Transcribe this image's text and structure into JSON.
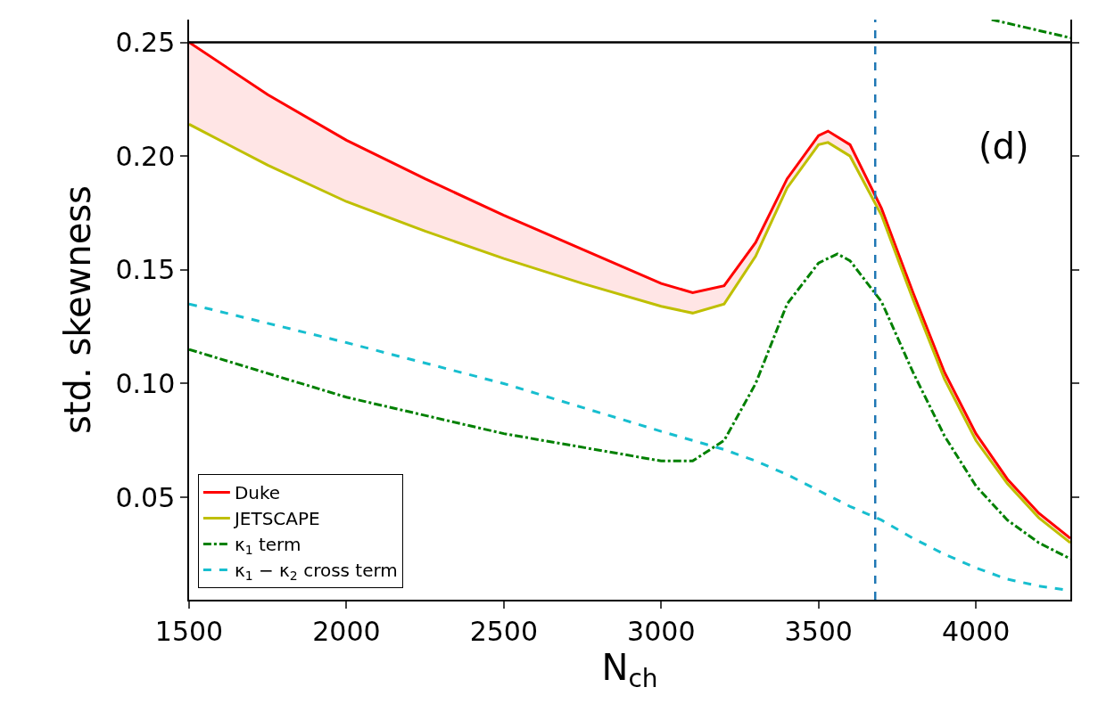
{
  "chart_data": {
    "type": "line",
    "xlabel": "N$_{ch}$",
    "ylabel": "std. skewness",
    "annotations": [
      "(d)"
    ],
    "xlim": [
      1500,
      4300
    ],
    "xticks": [
      1500,
      2000,
      2500,
      3000,
      3500,
      4000
    ],
    "ylim": [
      0.005,
      0.26
    ],
    "yticks": [
      0.05,
      {
        "value": 0.1,
        "label": "0.10"
      },
      0.15,
      {
        "value": 0.2,
        "label": "0.20"
      },
      0.25
    ],
    "grid": false,
    "legend": "bottom left",
    "ref_lines": [
      {
        "axis": "y",
        "value": 0.25,
        "color": "#000000",
        "line_style": "solid"
      },
      {
        "axis": "x",
        "value": 3680,
        "color": "#1f77b4",
        "line_style": "dashed"
      }
    ],
    "series": [
      {
        "name": "Duke",
        "color": "#ff0000",
        "line_style": "solid",
        "x": [
          1500,
          1750,
          2000,
          2250,
          2500,
          2750,
          3000,
          3100,
          3200,
          3300,
          3400,
          3500,
          3530,
          3600,
          3700,
          3800,
          3900,
          4000,
          4100,
          4200,
          4300
        ],
        "values": [
          0.25,
          0.227,
          0.207,
          0.19,
          0.174,
          0.159,
          0.144,
          0.14,
          0.143,
          0.162,
          0.19,
          0.209,
          0.211,
          0.205,
          0.177,
          0.14,
          0.105,
          0.078,
          0.058,
          0.043,
          0.032
        ],
        "lower": [
          0.214,
          0.196,
          0.18,
          0.167,
          0.155,
          0.144,
          0.134,
          0.131,
          0.135,
          0.156,
          0.186,
          0.205,
          0.206,
          0.2,
          0.174,
          0.137,
          0.102,
          0.075,
          0.056,
          0.041,
          0.03
        ],
        "upper": [
          0.25,
          0.227,
          0.207,
          0.19,
          0.174,
          0.159,
          0.144,
          0.14,
          0.143,
          0.162,
          0.19,
          0.209,
          0.211,
          0.205,
          0.177,
          0.14,
          0.105,
          0.078,
          0.058,
          0.043,
          0.032
        ]
      },
      {
        "name": "JETSCAPE",
        "color": "#bfbf00",
        "line_style": "solid",
        "x": [
          1500,
          1750,
          2000,
          2250,
          2500,
          2750,
          3000,
          3100,
          3200,
          3300,
          3400,
          3500,
          3530,
          3600,
          3700,
          3800,
          3900,
          4000,
          4100,
          4200,
          4300
        ],
        "values": [
          0.214,
          0.196,
          0.18,
          0.167,
          0.155,
          0.144,
          0.134,
          0.131,
          0.135,
          0.156,
          0.186,
          0.205,
          0.206,
          0.2,
          0.174,
          0.137,
          0.102,
          0.075,
          0.056,
          0.041,
          0.03
        ]
      },
      {
        "name": "κ$_{1}$ term",
        "color": "#008000",
        "line_style": "dashdot",
        "x": [
          1500,
          2000,
          2500,
          3000,
          3100,
          3200,
          3300,
          3400,
          3500,
          3560,
          3600,
          3700,
          3800,
          3900,
          4000,
          4100,
          4200,
          4300
        ],
        "values": [
          0.115,
          0.094,
          0.078,
          0.066,
          0.066,
          0.075,
          0.1,
          0.135,
          0.153,
          0.157,
          0.154,
          0.136,
          0.105,
          0.077,
          0.055,
          0.04,
          0.03,
          0.023
        ]
      },
      {
        "name": "κ$_{1}$ − κ$_{2}$ cross term",
        "color": "#17becf",
        "line_style": "dashed",
        "x": [
          1500,
          2000,
          2500,
          3000,
          3200,
          3300,
          3400,
          3500,
          3600,
          3700,
          3800,
          3900,
          4000,
          4100,
          4200,
          4300
        ],
        "values": [
          0.135,
          0.118,
          0.1,
          0.079,
          0.071,
          0.066,
          0.06,
          0.053,
          0.046,
          0.04,
          0.032,
          0.025,
          0.019,
          0.014,
          0.011,
          0.009
        ]
      },
      {
        "color": "#008000",
        "line_style": "dashdot",
        "x": [
          4050,
          4300
        ],
        "values": [
          0.26,
          0.252
        ]
      }
    ]
  }
}
